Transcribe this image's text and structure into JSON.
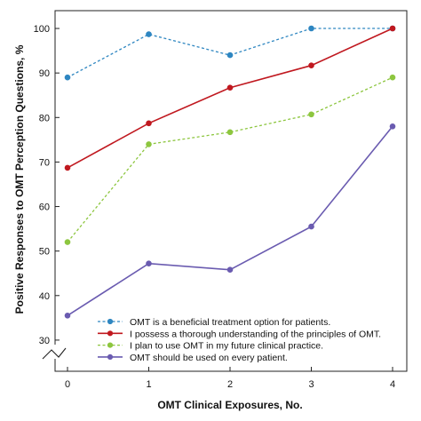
{
  "chart_data": {
    "type": "line",
    "x": [
      0,
      1,
      2,
      3,
      4
    ],
    "xlabel": "OMT Clinical Exposures, No.",
    "ylabel": "Positive Responses to OMT Perception Questions, %",
    "ylim": [
      23,
      104
    ],
    "yticks": [
      30,
      40,
      50,
      60,
      70,
      80,
      90,
      100
    ],
    "xticks": [
      0,
      1,
      2,
      3,
      4
    ],
    "grid": false,
    "axis_break": true,
    "legend_position": "bottom-right",
    "series": [
      {
        "name": "OMT is a beneficial treatment option for patients.",
        "values": [
          89,
          98.7,
          94,
          100,
          100
        ],
        "color": "#2e86c1",
        "line_style": "dashed"
      },
      {
        "name": "I possess a thorough understanding of the principles of OMT.",
        "values": [
          68.7,
          78.7,
          86.7,
          91.7,
          100
        ],
        "color": "#c0181f",
        "line_style": "solid"
      },
      {
        "name": "I plan to use OMT in my future clinical practice.",
        "values": [
          52,
          74,
          76.7,
          80.7,
          89
        ],
        "color": "#8dc63f",
        "line_style": "dashed"
      },
      {
        "name": "OMT should be used on every patient.",
        "values": [
          35.5,
          47.2,
          45.8,
          55.5,
          78
        ],
        "color": "#6a5bb0",
        "line_style": "solid"
      }
    ]
  }
}
